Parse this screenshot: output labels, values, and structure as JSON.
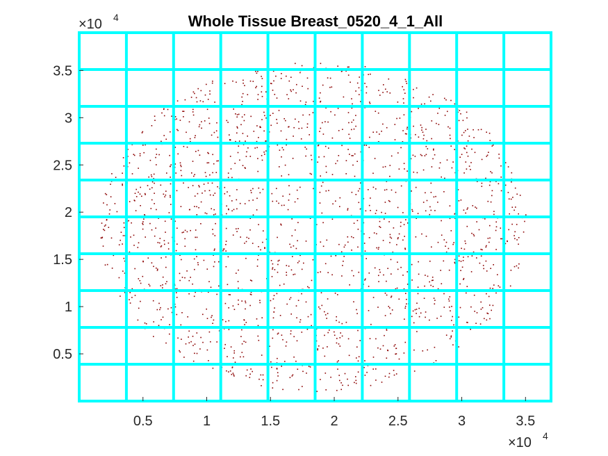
{
  "chart_data": {
    "type": "scatter",
    "title": "Whole Tissue Breast_0520_4_1_All",
    "xlabel": "",
    "ylabel": "",
    "xlim": [
      0,
      37000
    ],
    "ylim": [
      0,
      39000
    ],
    "x_ticks": [
      5000,
      10000,
      15000,
      20000,
      25000,
      30000,
      35000
    ],
    "x_tick_labels": [
      "0.5",
      "1",
      "1.5",
      "2",
      "2.5",
      "3",
      "3.5"
    ],
    "y_ticks": [
      5000,
      10000,
      15000,
      20000,
      25000,
      30000,
      35000
    ],
    "y_tick_labels": [
      "0.5",
      "1",
      "1.5",
      "2",
      "2.5",
      "3",
      "3.5"
    ],
    "x_multiplier": {
      "base": "×10",
      "exponent": "4"
    },
    "y_multiplier": {
      "base": "×10",
      "exponent": "4"
    },
    "grid": {
      "color": "#00ffff",
      "x_lines": [
        3700,
        7400,
        11100,
        14800,
        18500,
        22200,
        25900,
        29600,
        33300
      ],
      "y_lines": [
        3900,
        7800,
        11700,
        15600,
        19500,
        23400,
        27300,
        31200,
        35100
      ]
    },
    "series": [
      {
        "marker_color": "#8b0000",
        "region": {
          "center_x": 18300,
          "center_y": 18500,
          "radius_x": 16800,
          "radius_y": 17500
        },
        "approx_point_count": 1800
      }
    ],
    "grid_on": true,
    "legend": "none"
  }
}
